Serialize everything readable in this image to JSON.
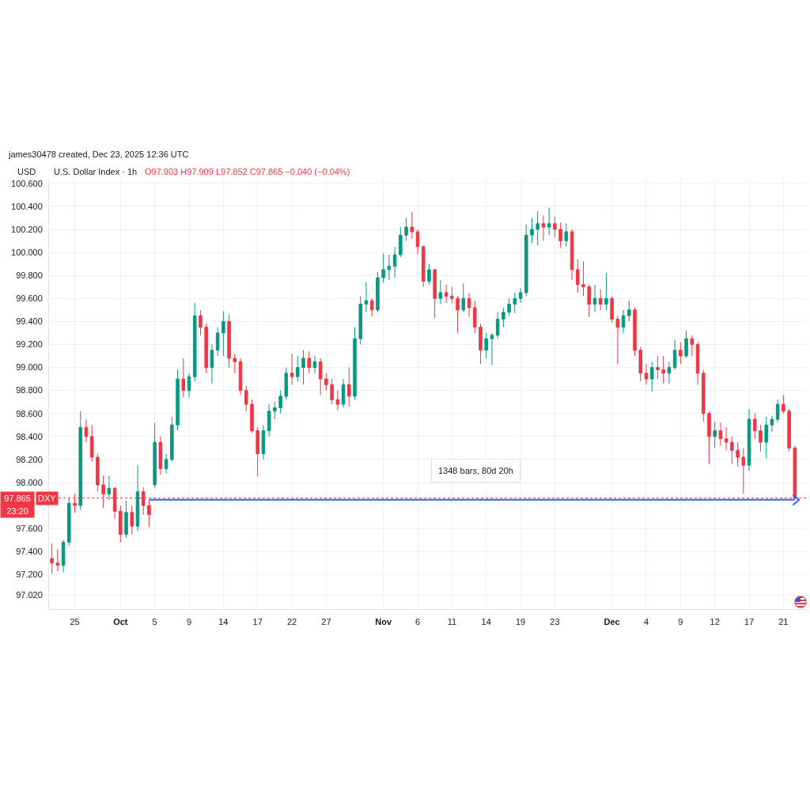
{
  "chart_data": {
    "type": "candlestick",
    "title": "U.S. Dollar Index · 1h",
    "subtitle": "O97.903 H97.909 L97.852 C97.865 −0.040 (−0.04%)",
    "ylabel": "USD",
    "categories": [
      null,
      null,
      null,
      null,
      "25",
      null,
      null,
      null,
      null,
      null,
      null,
      null,
      "Oct",
      null,
      null,
      null,
      null,
      null,
      "5",
      null,
      null,
      null,
      null,
      null,
      "9",
      null,
      null,
      null,
      null,
      null,
      "14",
      null,
      null,
      null,
      null,
      null,
      "17",
      null,
      null,
      null,
      null,
      null,
      "22",
      null,
      null,
      null,
      null,
      null,
      "27",
      null,
      null,
      null,
      null,
      null,
      null,
      null,
      null,
      null,
      "Nov",
      null,
      null,
      null,
      null,
      null,
      "6",
      null,
      null,
      null,
      null,
      null,
      "11",
      null,
      null,
      null,
      null,
      null,
      "14",
      null,
      null,
      null,
      null,
      null,
      "19",
      null,
      null,
      null,
      null,
      null,
      "23",
      null,
      null,
      null,
      null,
      null,
      null,
      null,
      null,
      null,
      "Dec",
      null,
      null,
      null,
      null,
      null,
      "4",
      null,
      null,
      null,
      null,
      null,
      "9",
      null,
      null,
      null,
      null,
      null,
      "12",
      null,
      null,
      null,
      null,
      null,
      "17",
      null,
      null,
      null,
      null,
      null,
      "21",
      null,
      null
    ],
    "ohlc": [
      [
        97.34,
        97.47,
        97.21,
        97.3
      ],
      [
        97.3,
        97.42,
        97.23,
        97.28
      ],
      [
        97.28,
        97.5,
        97.22,
        97.48
      ],
      [
        97.48,
        97.87,
        97.45,
        97.82
      ],
      [
        97.82,
        97.9,
        97.74,
        97.8
      ],
      [
        97.8,
        98.62,
        97.76,
        98.48
      ],
      [
        98.48,
        98.55,
        98.35,
        98.4
      ],
      [
        98.4,
        98.5,
        98.18,
        98.22
      ],
      [
        98.22,
        98.25,
        97.92,
        97.98
      ],
      [
        97.98,
        98.06,
        97.78,
        97.9
      ],
      [
        97.9,
        98.06,
        97.85,
        97.95
      ],
      [
        97.95,
        97.96,
        97.68,
        97.75
      ],
      [
        97.75,
        97.8,
        97.48,
        97.55
      ],
      [
        97.55,
        97.84,
        97.52,
        97.74
      ],
      [
        97.74,
        97.8,
        97.55,
        97.62
      ],
      [
        97.62,
        98.15,
        97.58,
        97.92
      ],
      [
        97.92,
        97.96,
        97.72,
        97.8
      ],
      [
        97.8,
        97.85,
        97.61,
        97.72
      ],
      [
        97.98,
        98.52,
        97.95,
        98.35
      ],
      [
        98.35,
        98.4,
        98.07,
        98.12
      ],
      [
        98.12,
        98.25,
        98.08,
        98.2
      ],
      [
        98.2,
        98.57,
        98.18,
        98.5
      ],
      [
        98.5,
        98.98,
        98.45,
        98.9
      ],
      [
        98.9,
        99.08,
        98.74,
        98.8
      ],
      [
        98.8,
        98.95,
        98.74,
        98.92
      ],
      [
        98.92,
        99.56,
        98.88,
        99.45
      ],
      [
        99.45,
        99.5,
        99.28,
        99.35
      ],
      [
        99.35,
        99.38,
        98.95,
        99.0
      ],
      [
        99.0,
        99.2,
        98.86,
        99.15
      ],
      [
        99.15,
        99.35,
        99.1,
        99.3
      ],
      [
        99.3,
        99.49,
        99.1,
        99.4
      ],
      [
        99.4,
        99.46,
        99.0,
        99.08
      ],
      [
        99.08,
        99.12,
        98.95,
        99.05
      ],
      [
        99.05,
        99.08,
        98.76,
        98.8
      ],
      [
        98.8,
        98.84,
        98.62,
        98.68
      ],
      [
        98.68,
        98.72,
        98.43,
        98.45
      ],
      [
        98.45,
        98.48,
        98.05,
        98.25
      ],
      [
        98.25,
        98.5,
        98.2,
        98.45
      ],
      [
        98.45,
        98.68,
        98.4,
        98.62
      ],
      [
        98.62,
        98.7,
        98.55,
        98.65
      ],
      [
        98.65,
        98.8,
        98.6,
        98.75
      ],
      [
        98.75,
        99.0,
        98.72,
        98.95
      ],
      [
        98.95,
        99.12,
        98.85,
        98.92
      ],
      [
        98.92,
        99.1,
        98.88,
        99.0
      ],
      [
        99.0,
        99.15,
        98.85,
        99.08
      ],
      [
        99.08,
        99.14,
        98.95,
        99.0
      ],
      [
        99.0,
        99.1,
        98.95,
        99.05
      ],
      [
        99.05,
        99.08,
        98.76,
        98.9
      ],
      [
        98.9,
        98.95,
        98.8,
        98.85
      ],
      [
        98.85,
        98.9,
        98.68,
        98.72
      ],
      [
        98.72,
        98.8,
        98.63,
        98.68
      ],
      [
        98.68,
        98.9,
        98.65,
        98.85
      ],
      [
        98.85,
        99.0,
        98.66,
        98.75
      ],
      [
        98.75,
        99.35,
        98.72,
        99.25
      ],
      [
        99.25,
        99.62,
        99.2,
        99.55
      ],
      [
        99.55,
        99.74,
        99.48,
        99.58
      ],
      [
        99.58,
        99.6,
        99.44,
        99.5
      ],
      [
        99.5,
        99.83,
        99.48,
        99.78
      ],
      [
        99.78,
        99.99,
        99.74,
        99.85
      ],
      [
        99.85,
        99.98,
        99.76,
        99.88
      ],
      [
        99.88,
        100.05,
        99.78,
        99.98
      ],
      [
        99.98,
        100.22,
        99.96,
        100.15
      ],
      [
        100.15,
        100.3,
        100.1,
        100.22
      ],
      [
        100.22,
        100.35,
        100.12,
        100.18
      ],
      [
        100.18,
        100.2,
        99.98,
        100.05
      ],
      [
        100.05,
        100.06,
        99.7,
        99.75
      ],
      [
        99.75,
        99.9,
        99.72,
        99.85
      ],
      [
        99.85,
        99.86,
        99.43,
        99.6
      ],
      [
        99.6,
        99.76,
        99.55,
        99.65
      ],
      [
        99.65,
        99.72,
        99.56,
        99.62
      ],
      [
        99.62,
        99.7,
        99.56,
        99.6
      ],
      [
        99.6,
        99.62,
        99.3,
        99.5
      ],
      [
        99.5,
        99.73,
        99.48,
        99.6
      ],
      [
        99.6,
        99.65,
        99.44,
        99.52
      ],
      [
        99.52,
        99.58,
        99.3,
        99.35
      ],
      [
        99.35,
        99.38,
        99.03,
        99.15
      ],
      [
        99.15,
        99.3,
        99.08,
        99.25
      ],
      [
        99.25,
        99.3,
        99.02,
        99.28
      ],
      [
        99.28,
        99.48,
        99.25,
        99.42
      ],
      [
        99.42,
        99.52,
        99.35,
        99.48
      ],
      [
        99.48,
        99.6,
        99.45,
        99.55
      ],
      [
        99.55,
        99.65,
        99.47,
        99.6
      ],
      [
        99.6,
        99.69,
        99.56,
        99.65
      ],
      [
        99.65,
        100.24,
        99.62,
        100.15
      ],
      [
        100.15,
        100.3,
        100.08,
        100.2
      ],
      [
        100.2,
        100.36,
        100.06,
        100.25
      ],
      [
        100.25,
        100.32,
        100.1,
        100.22
      ],
      [
        100.22,
        100.39,
        100.15,
        100.25
      ],
      [
        100.25,
        100.31,
        100.13,
        100.2
      ],
      [
        100.2,
        100.26,
        100.04,
        100.1
      ],
      [
        100.1,
        100.25,
        100.05,
        100.18
      ],
      [
        100.18,
        100.2,
        99.76,
        99.85
      ],
      [
        99.85,
        99.94,
        99.65,
        99.72
      ],
      [
        99.72,
        99.92,
        99.62,
        99.7
      ],
      [
        99.7,
        99.72,
        99.44,
        99.55
      ],
      [
        99.55,
        99.72,
        99.48,
        99.6
      ],
      [
        99.6,
        99.68,
        99.5,
        99.55
      ],
      [
        99.55,
        99.82,
        99.5,
        99.6
      ],
      [
        99.6,
        99.62,
        99.39,
        99.42
      ],
      [
        99.42,
        99.45,
        99.03,
        99.35
      ],
      [
        99.35,
        99.5,
        99.3,
        99.45
      ],
      [
        99.45,
        99.58,
        99.4,
        99.5
      ],
      [
        99.5,
        99.52,
        99.1,
        99.15
      ],
      [
        99.15,
        99.18,
        98.88,
        98.95
      ],
      [
        98.95,
        99.03,
        98.85,
        98.9
      ],
      [
        98.9,
        99.05,
        98.79,
        99.0
      ],
      [
        99.0,
        99.1,
        98.9,
        98.98
      ],
      [
        98.98,
        99.1,
        98.86,
        98.95
      ],
      [
        98.95,
        99.05,
        98.86,
        99.0
      ],
      [
        99.0,
        99.24,
        98.98,
        99.15
      ],
      [
        99.15,
        99.22,
        99.03,
        99.1
      ],
      [
        99.1,
        99.32,
        99.08,
        99.25
      ],
      [
        99.25,
        99.28,
        99.1,
        99.2
      ],
      [
        99.2,
        99.22,
        98.85,
        98.95
      ],
      [
        98.95,
        98.98,
        98.53,
        98.6
      ],
      [
        98.6,
        98.62,
        98.16,
        98.4
      ],
      [
        98.4,
        98.53,
        98.3,
        98.45
      ],
      [
        98.45,
        98.52,
        98.32,
        98.38
      ],
      [
        98.38,
        98.48,
        98.28,
        98.35
      ],
      [
        98.35,
        98.4,
        98.16,
        98.28
      ],
      [
        98.28,
        98.35,
        98.14,
        98.22
      ],
      [
        98.22,
        98.3,
        97.9,
        98.15
      ],
      [
        98.15,
        98.64,
        98.1,
        98.55
      ],
      [
        98.55,
        98.6,
        98.38,
        98.45
      ],
      [
        98.45,
        98.5,
        98.27,
        98.35
      ],
      [
        98.35,
        98.57,
        98.21,
        98.5
      ],
      [
        98.5,
        98.58,
        98.44,
        98.55
      ],
      [
        98.55,
        98.72,
        98.52,
        98.68
      ],
      [
        98.68,
        98.76,
        98.6,
        98.62
      ],
      [
        98.62,
        98.64,
        98.27,
        98.3
      ],
      [
        98.3,
        98.32,
        97.85,
        97.865
      ]
    ],
    "colors": [
      "#f23645",
      "#f23645",
      "#089981",
      "#089981",
      "#f23645",
      "#089981",
      "#f23645",
      "#f23645",
      "#f23645",
      "#f23645",
      "#089981",
      "#f23645",
      "#f23645",
      "#089981",
      "#f23645",
      "#089981",
      "#f23645",
      "#f23645",
      "#089981",
      "#f23645",
      "#089981",
      "#089981",
      "#089981",
      "#f23645",
      "#089981",
      "#089981",
      "#f23645",
      "#f23645",
      "#089981",
      "#089981",
      "#089981",
      "#f23645",
      "#f23645",
      "#f23645",
      "#f23645",
      "#f23645",
      "#f23645",
      "#089981",
      "#089981",
      "#089981",
      "#089981",
      "#089981",
      "#f23645",
      "#089981",
      "#089981",
      "#f23645",
      "#089981",
      "#f23645",
      "#f23645",
      "#f23645",
      "#f23645",
      "#089981",
      "#f23645",
      "#089981",
      "#089981",
      "#089981",
      "#f23645",
      "#089981",
      "#089981",
      "#089981",
      "#089981",
      "#089981",
      "#089981",
      "#f23645",
      "#f23645",
      "#f23645",
      "#089981",
      "#f23645",
      "#089981",
      "#f23645",
      "#f23645",
      "#f23645",
      "#089981",
      "#f23645",
      "#f23645",
      "#f23645",
      "#089981",
      "#089981",
      "#089981",
      "#089981",
      "#089981",
      "#089981",
      "#089981",
      "#089981",
      "#089981",
      "#089981",
      "#f23645",
      "#089981",
      "#f23645",
      "#f23645",
      "#089981",
      "#f23645",
      "#f23645",
      "#f23645",
      "#f23645",
      "#089981",
      "#f23645",
      "#089981",
      "#f23645",
      "#f23645",
      "#089981",
      "#089981",
      "#f23645",
      "#f23645",
      "#f23645",
      "#089981",
      "#f23645",
      "#f23645",
      "#089981",
      "#089981",
      "#f23645",
      "#089981",
      "#f23645",
      "#f23645",
      "#f23645",
      "#f23645",
      "#089981",
      "#f23645",
      "#f23645",
      "#f23645",
      "#f23645",
      "#f23645",
      "#089981",
      "#f23645",
      "#f23645",
      "#089981",
      "#089981",
      "#089981",
      "#f23645",
      "#f23645",
      "#f23645"
    ],
    "series": [
      {
        "type": "line",
        "color": "#2962ff",
        "values": [
          null,
          null,
          null,
          null,
          null,
          null,
          null,
          null,
          null,
          null,
          null,
          null,
          null,
          null,
          null,
          null,
          null,
          97.85,
          97.85,
          97.85,
          97.85,
          97.85,
          97.85,
          97.85,
          97.85,
          97.85,
          97.85,
          97.85,
          97.85,
          97.85,
          97.85,
          97.85,
          97.85,
          97.85,
          97.85,
          97.85,
          97.85,
          97.85,
          97.85,
          97.85,
          97.85,
          97.85,
          97.85,
          97.85,
          97.85,
          97.85,
          97.85,
          97.85,
          97.85,
          97.85,
          97.85,
          97.85,
          97.85,
          97.85,
          97.85,
          97.85,
          97.85,
          97.85,
          97.85,
          97.85,
          97.85,
          97.85,
          97.85,
          97.85,
          97.85,
          97.85,
          97.85,
          97.85,
          97.85,
          97.85,
          97.85,
          97.85,
          97.85,
          97.85,
          97.85,
          97.85,
          97.85,
          97.85,
          97.85,
          97.85,
          97.85,
          97.85,
          97.85,
          97.85,
          97.85,
          97.85,
          97.85,
          97.85,
          97.85,
          97.85,
          97.85,
          97.85,
          97.85,
          97.85,
          97.85,
          97.85,
          97.85,
          97.85,
          97.85,
          97.85,
          97.85,
          97.85,
          97.85,
          97.85,
          97.85,
          97.85,
          97.85,
          97.85,
          97.85,
          97.85,
          97.85,
          97.85,
          97.85,
          97.85,
          97.85,
          97.85,
          97.85,
          97.85,
          97.85,
          97.85,
          97.85,
          97.85,
          97.85,
          97.85,
          97.85,
          97.85,
          97.85,
          97.85,
          97.85,
          97.85,
          97.85
        ]
      }
    ],
    "ylim": [
      96.9,
      100.64
    ],
    "yticks": [
      {
        "value": 97.02,
        "label": "97.020"
      },
      {
        "value": 97.2,
        "label": "97.200"
      },
      {
        "value": 97.4,
        "label": "97.400"
      },
      {
        "value": 97.6,
        "label": "97.600"
      },
      {
        "value": 98.0,
        "label": "98.000"
      },
      {
        "value": 98.2,
        "label": "98.200"
      },
      {
        "value": 98.4,
        "label": "98.400"
      },
      {
        "value": 98.6,
        "label": "98.600"
      },
      {
        "value": 98.8,
        "label": "98.800"
      },
      {
        "value": 99.0,
        "label": "99.000"
      },
      {
        "value": 99.2,
        "label": "99.200"
      },
      {
        "value": 99.4,
        "label": "99.400"
      },
      {
        "value": 99.6,
        "label": "99.600"
      },
      {
        "value": 99.8,
        "label": "99.800"
      },
      {
        "value": 100.0,
        "label": "100.000"
      },
      {
        "value": 100.2,
        "label": "100.200"
      },
      {
        "value": 100.4,
        "label": "100.400"
      },
      {
        "value": 100.6,
        "label": "100.600"
      }
    ],
    "grid": true,
    "legend": false,
    "ref_lines": [
      {
        "axis": "y",
        "value": 97.865,
        "label": "97.865",
        "color": "#f23645",
        "line_style": "dotted"
      }
    ],
    "annotations": [
      "james30478 created, Dec 23, 2025 12:36 UTC",
      "1348 bars, 80d 20h",
      "23:20",
      {
        "text": "DXY",
        "y": 97.865
      }
    ]
  }
}
